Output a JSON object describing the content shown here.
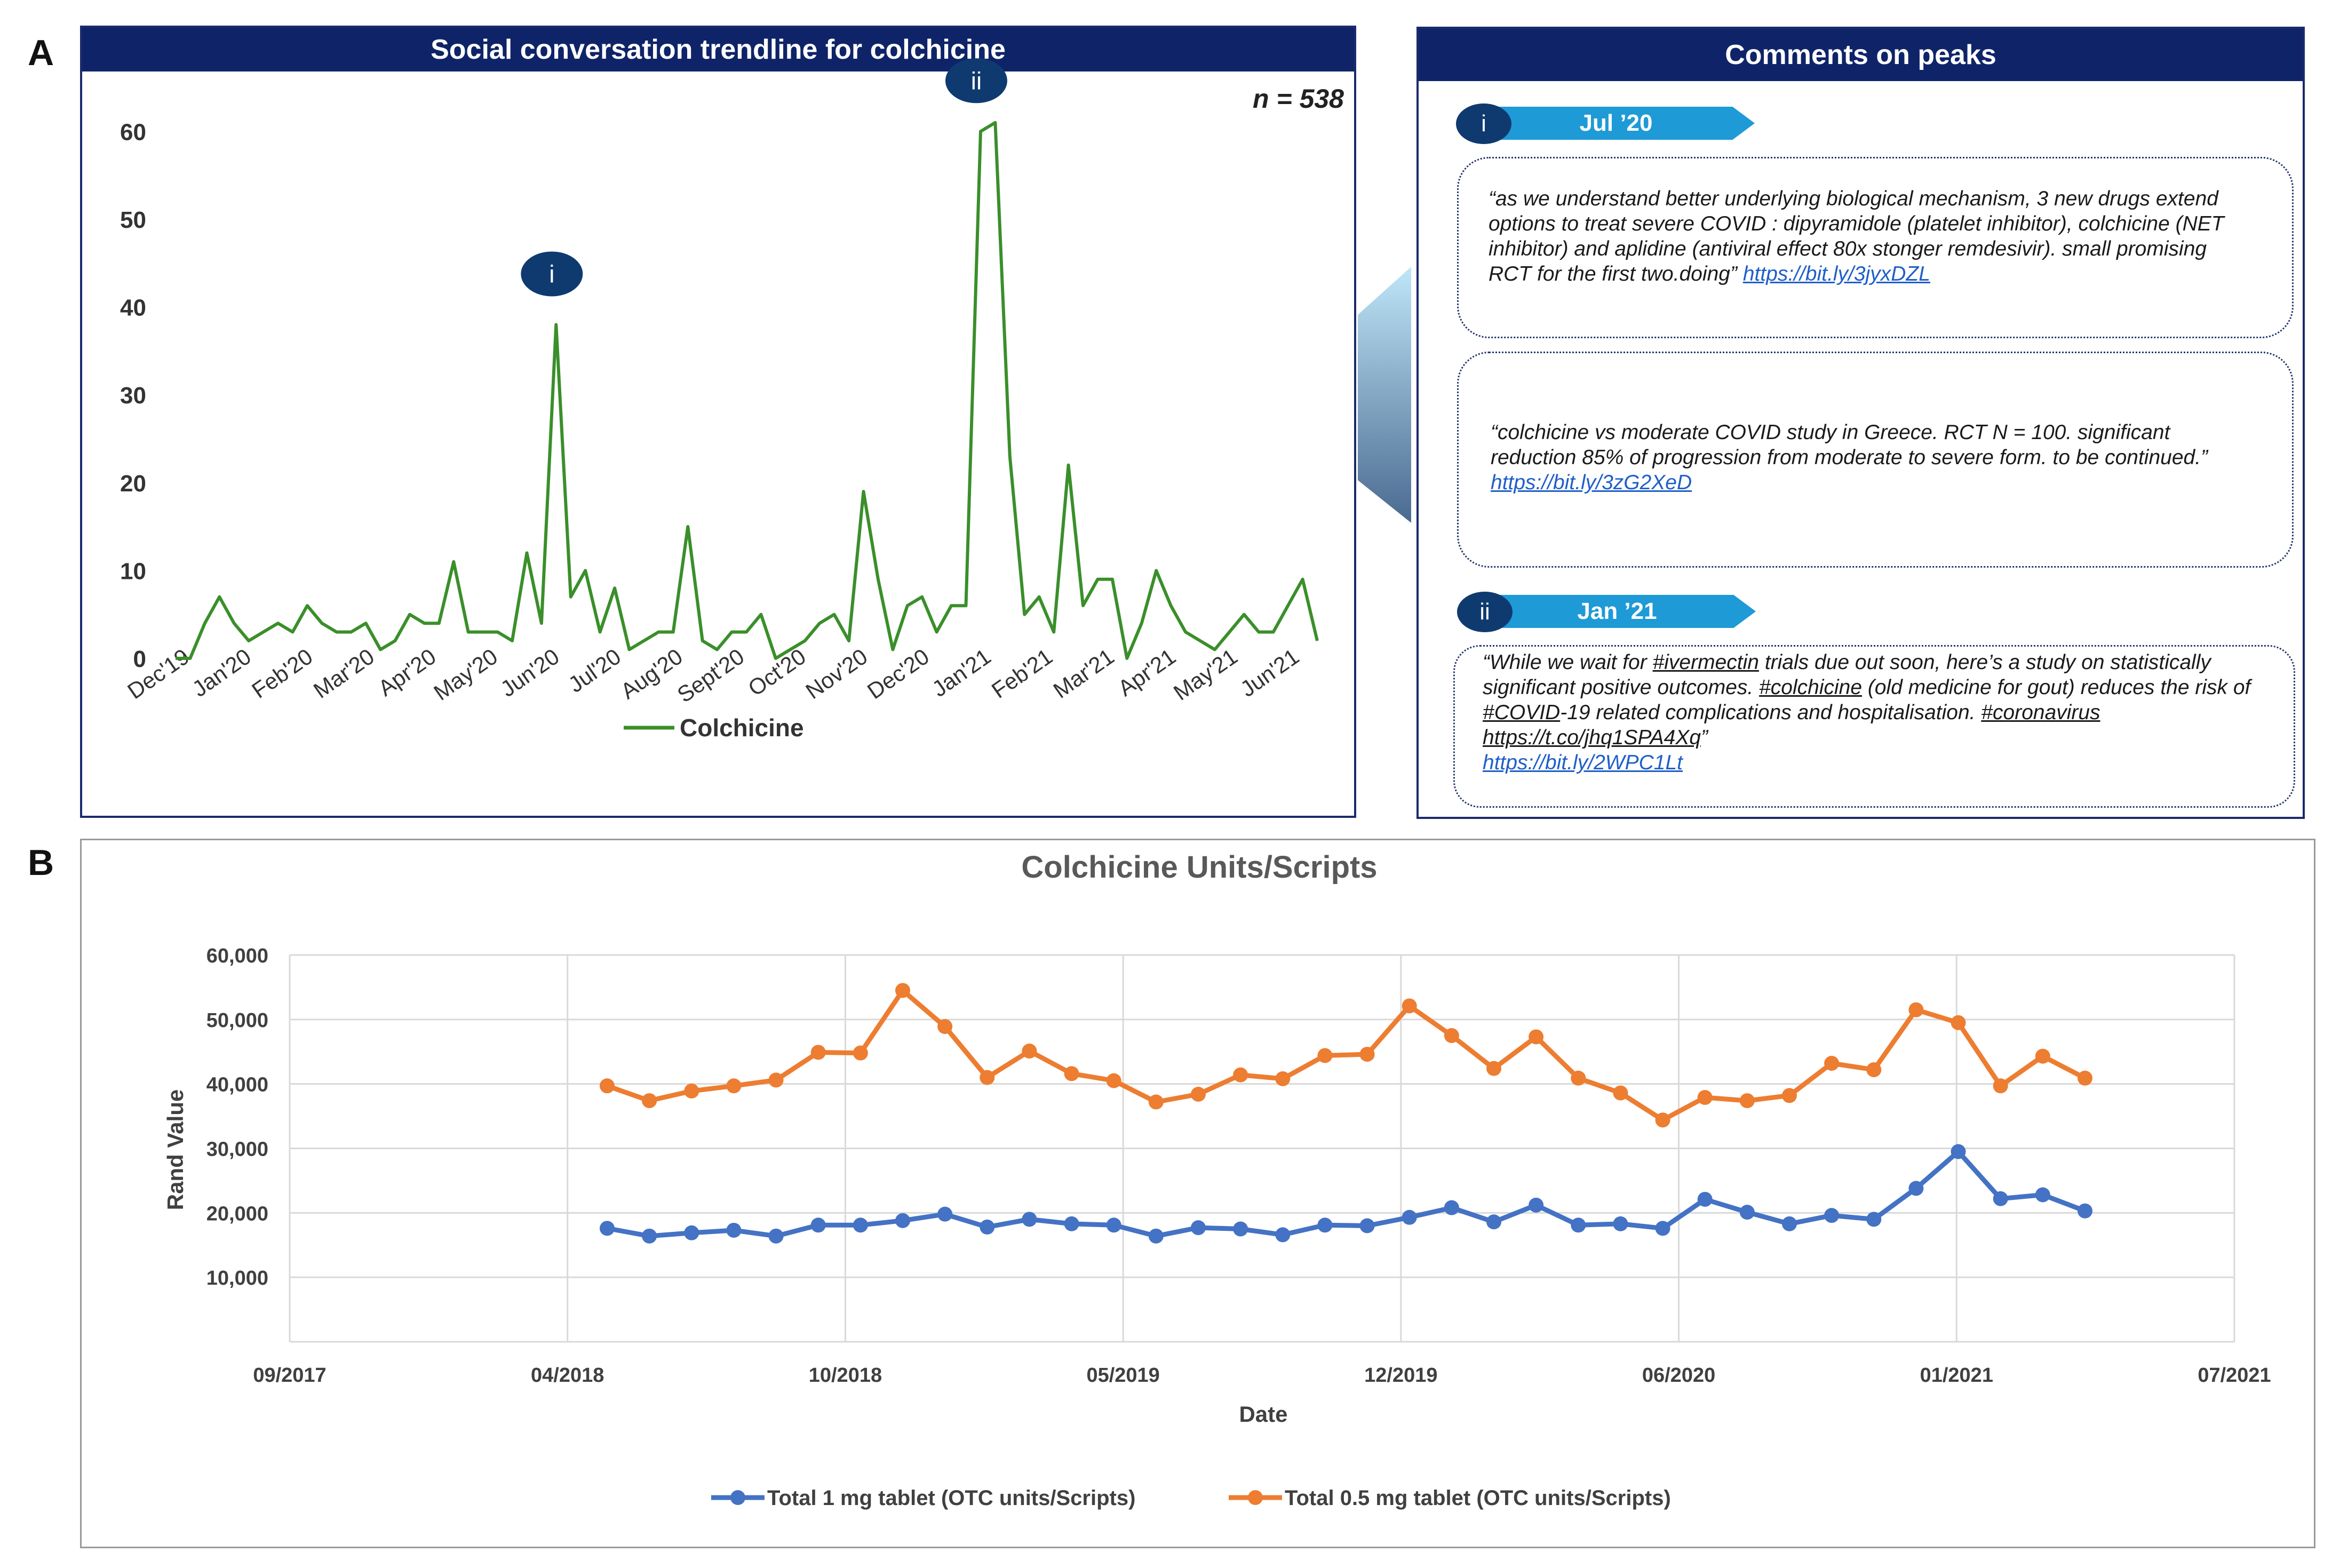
{
  "panel_a_label": "A",
  "panel_b_label": "B",
  "trend_title": "Social conversation trendline for colchicine",
  "comments_title": "Comments on peaks",
  "peaks": [
    {
      "marker": "i",
      "label": "Jul ’20"
    },
    {
      "marker": "ii",
      "label": "Jan ’21"
    }
  ],
  "comments": {
    "c1_text": "“as we understand better underlying biological mechanism, 3 new drugs extend options to treat severe COVID : dipyramidole (platelet inhibitor), colchicine (NET inhibitor) and aplidine (antiviral effect 80x stonger remdesivir). small promising RCT for the first two.doing” ",
    "c1_link": "https://bit.ly/3jyxDZL",
    "c2_text": "“colchicine vs moderate COVID study in Greece. RCT N = 100. significant reduction 85% of progression from moderate to severe form. to be continued.” ",
    "c2_link": "https://bit.ly/3zG2XeD",
    "c3_p1": "“While we wait for ",
    "c3_tag1": "#ivermectin",
    "c3_p2": " trials due out soon, here’s a study on statistically significant positive outcomes. ",
    "c3_tag2": "#colchicine",
    "c3_p3": " (old medicine for gout) reduces the risk of ",
    "c3_tag3": "#COVID",
    "c3_p4": "-19 related complications and hospitalisation. ",
    "c3_tag4": "#coronavirus",
    "c3_p5": " ",
    "c3_tag5": "https://t.co/jhq1SPA4Xq",
    "c3_p6": "”",
    "c3_link": "https://bit.ly/2WPC1Lt"
  },
  "chart_data": [
    {
      "type": "line",
      "title": "Social conversation trendline for colchicine",
      "annotation_n": "n = 538",
      "ylim": [
        0,
        65
      ],
      "yticks": [
        0,
        10,
        20,
        30,
        40,
        50,
        60
      ],
      "xtick_labels": [
        "Dec'19",
        "Jan'20",
        "Feb'20",
        "Mar'20",
        "Apr'20",
        "May'20",
        "Jun'20",
        "Jul'20",
        "Aug'20",
        "Sept'20",
        "Oct'20",
        "Nov'20",
        "Dec'20",
        "Jan'21",
        "Feb'21",
        "Mar'21",
        "Apr'21",
        "May'21",
        "Jun'21"
      ],
      "series": [
        {
          "name": "Colchicine",
          "color": "#3a8f2a",
          "values": [
            0,
            0,
            4,
            7,
            4,
            2,
            3,
            4,
            3,
            6,
            4,
            3,
            3,
            4,
            1,
            2,
            5,
            4,
            4,
            11,
            3,
            3,
            3,
            2,
            12,
            4,
            38,
            7,
            10,
            3,
            8,
            1,
            2,
            3,
            3,
            15,
            2,
            1,
            3,
            3,
            5,
            0,
            1,
            2,
            4,
            5,
            2,
            19,
            9,
            1,
            6,
            7,
            3,
            6,
            6,
            60,
            61,
            23,
            5,
            7,
            3,
            22,
            6,
            9,
            9,
            0,
            4,
            10,
            6,
            3,
            2,
            1,
            3,
            5,
            3,
            3,
            6,
            9,
            2
          ]
        }
      ],
      "peak_markers": [
        {
          "label": "i",
          "index": 26
        },
        {
          "label": "ii",
          "index": 55
        }
      ]
    },
    {
      "type": "line",
      "title": "Colchicine Units/Scripts",
      "xlabel": "Date",
      "ylabel": "Rand Value",
      "ylim": [
        0,
        60000
      ],
      "yticks": [
        10000,
        20000,
        30000,
        40000,
        50000,
        60000
      ],
      "ytick_labels": [
        "10,000",
        "20,000",
        "30,000",
        "40,000",
        "50,000",
        "60,000"
      ],
      "xtick_labels": [
        "09/2017",
        "04/2018",
        "10/2018",
        "05/2019",
        "12/2019",
        "06/2020",
        "01/2021",
        "07/2021"
      ],
      "series": [
        {
          "name": "Total 1 mg tablet (OTC units/Scripts)",
          "color": "#4472c4",
          "values": [
            17600,
            16400,
            16900,
            17300,
            16400,
            18100,
            18100,
            18800,
            19800,
            17800,
            19000,
            18300,
            18100,
            16400,
            17700,
            17500,
            16600,
            18100,
            18000,
            19300,
            20800,
            18600,
            21200,
            18100,
            18300,
            17600,
            22100,
            20100,
            18300,
            19600,
            19000,
            23800,
            29500,
            22200,
            22800,
            20300
          ]
        },
        {
          "name": "Total 0.5 mg tablet (OTC units/Scripts)",
          "color": "#ed7d31",
          "values": [
            39700,
            37400,
            38900,
            39700,
            40600,
            44900,
            44800,
            54500,
            48900,
            41000,
            45100,
            41600,
            40500,
            37200,
            38400,
            41400,
            40800,
            44400,
            44600,
            52100,
            47500,
            42400,
            47300,
            40900,
            38600,
            34400,
            37900,
            37400,
            38200,
            43200,
            42200,
            51500,
            49500,
            39700,
            44300,
            40900
          ]
        }
      ]
    }
  ]
}
